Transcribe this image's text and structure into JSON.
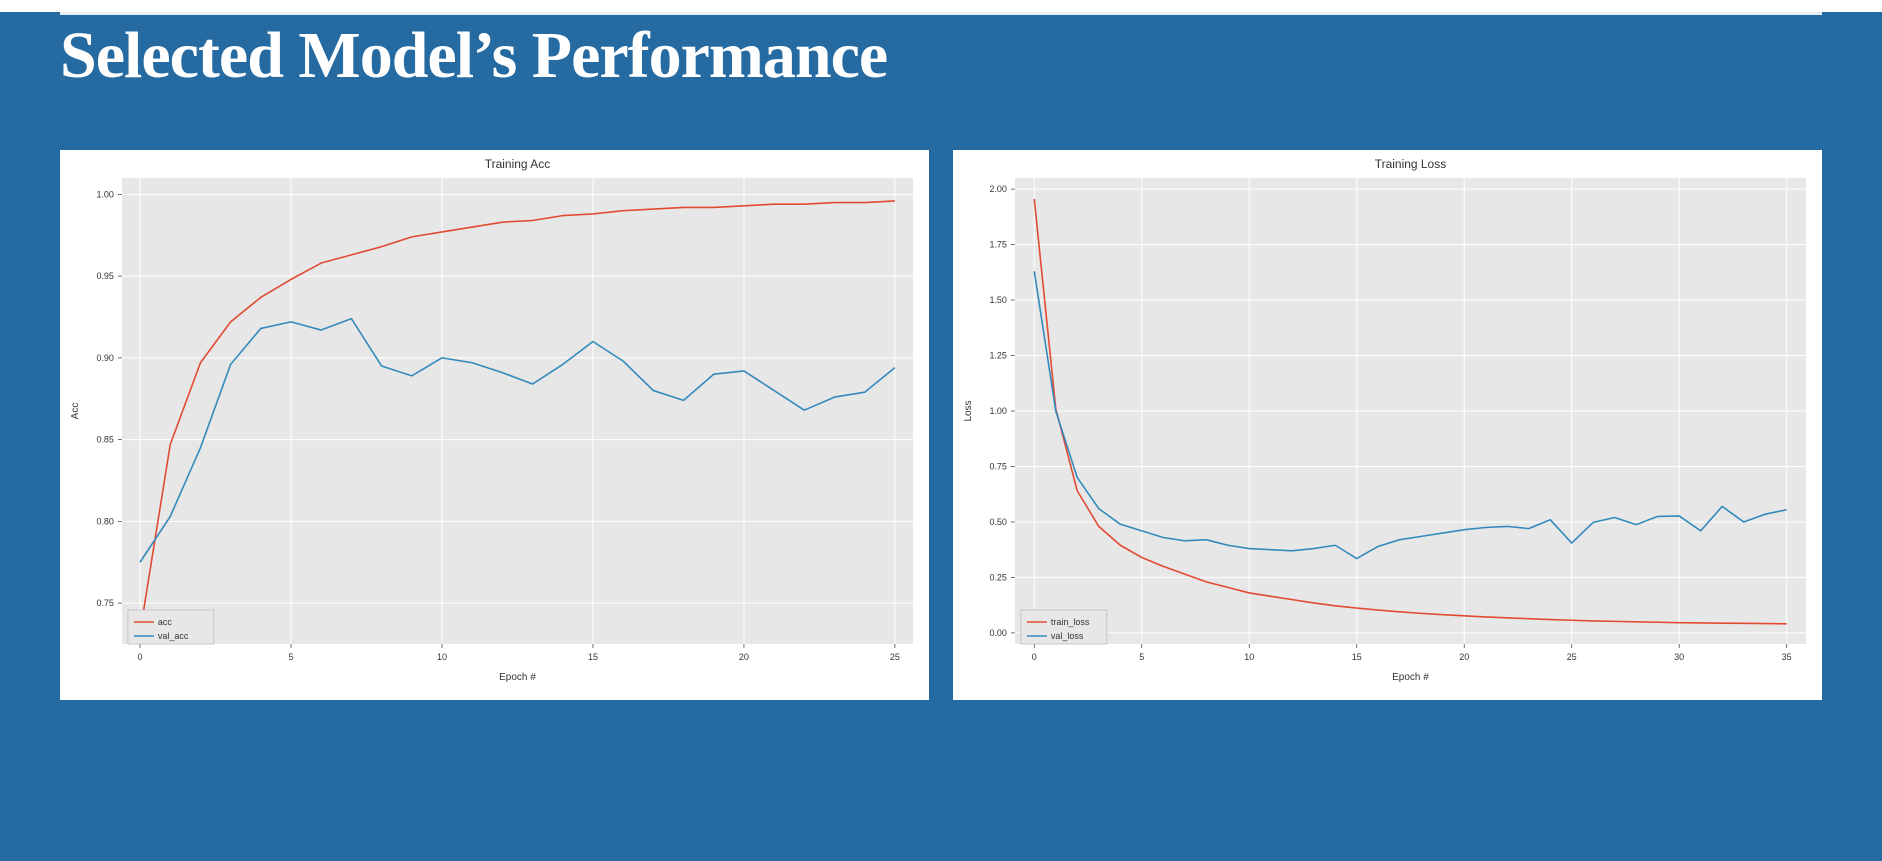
{
  "slide": {
    "background_color": "#256ba2",
    "rule_color": "#e6eef5",
    "title": "Selected Model’s Performance",
    "title_color": "#ffffff",
    "title_fontsize": 66,
    "title_font_family": "Georgia, 'Times New Roman', serif"
  },
  "charts": [
    {
      "id": "acc",
      "title": "Training Acc",
      "xlabel": "Epoch #",
      "ylabel": "Acc",
      "background_color": "#ffffff",
      "plot_bgcolor": "#e7e7e7",
      "grid_color": "#ffffff",
      "text_color": "#333333",
      "title_fontsize": 12,
      "label_fontsize": 10,
      "tick_fontsize": 9,
      "legend_fontsize": 9,
      "xlim": [
        -0.6,
        25.6
      ],
      "xticks": [
        0,
        5,
        10,
        15,
        20,
        25
      ],
      "ylim": [
        0.725,
        1.01
      ],
      "yticks": [
        0.75,
        0.8,
        0.85,
        0.9,
        0.95,
        1.0
      ],
      "legend_pos": "lower-left",
      "series": [
        {
          "name": "acc",
          "color": "#e24a33",
          "width": 1.6,
          "x": [
            0,
            1,
            2,
            3,
            4,
            5,
            6,
            7,
            8,
            9,
            10,
            11,
            12,
            13,
            14,
            15,
            16,
            17,
            18,
            19,
            20,
            21,
            22,
            23,
            24,
            25
          ],
          "y": [
            0.732,
            0.847,
            0.897,
            0.922,
            0.937,
            0.948,
            0.958,
            0.963,
            0.968,
            0.974,
            0.977,
            0.98,
            0.983,
            0.984,
            0.987,
            0.988,
            0.99,
            0.991,
            0.992,
            0.992,
            0.993,
            0.994,
            0.994,
            0.995,
            0.995,
            0.996
          ]
        },
        {
          "name": "val_acc",
          "color": "#348abd",
          "width": 1.6,
          "x": [
            0,
            1,
            2,
            3,
            4,
            5,
            6,
            7,
            8,
            9,
            10,
            11,
            12,
            13,
            14,
            15,
            16,
            17,
            18,
            19,
            20,
            21,
            22,
            23,
            24,
            25
          ],
          "y": [
            0.775,
            0.803,
            0.845,
            0.896,
            0.918,
            0.922,
            0.917,
            0.924,
            0.895,
            0.889,
            0.9,
            0.897,
            0.891,
            0.884,
            0.896,
            0.91,
            0.898,
            0.88,
            0.874,
            0.89,
            0.892,
            0.88,
            0.868,
            0.876,
            0.879,
            0.894
          ]
        }
      ]
    },
    {
      "id": "loss",
      "title": "Training Loss",
      "xlabel": "Epoch #",
      "ylabel": "Loss",
      "background_color": "#ffffff",
      "plot_bgcolor": "#e7e7e7",
      "grid_color": "#ffffff",
      "text_color": "#333333",
      "title_fontsize": 12,
      "label_fontsize": 10,
      "tick_fontsize": 9,
      "legend_fontsize": 9,
      "xlim": [
        -0.9,
        35.9
      ],
      "xticks": [
        0,
        5,
        10,
        15,
        20,
        25,
        30,
        35
      ],
      "ylim": [
        -0.05,
        2.05
      ],
      "yticks": [
        0.0,
        0.25,
        0.5,
        0.75,
        1.0,
        1.25,
        1.5,
        1.75,
        2.0
      ],
      "legend_pos": "lower-left",
      "series": [
        {
          "name": "train_loss",
          "color": "#e24a33",
          "width": 1.6,
          "x": [
            0,
            1,
            2,
            3,
            4,
            5,
            6,
            7,
            8,
            9,
            10,
            11,
            12,
            13,
            14,
            15,
            16,
            17,
            18,
            19,
            20,
            21,
            22,
            23,
            24,
            25,
            26,
            27,
            28,
            29,
            30,
            31,
            32,
            33,
            34,
            35
          ],
          "y": [
            1.955,
            1.01,
            0.64,
            0.48,
            0.395,
            0.34,
            0.3,
            0.265,
            0.23,
            0.205,
            0.18,
            0.165,
            0.15,
            0.135,
            0.122,
            0.112,
            0.103,
            0.095,
            0.088,
            0.082,
            0.077,
            0.072,
            0.068,
            0.064,
            0.06,
            0.057,
            0.054,
            0.052,
            0.05,
            0.048,
            0.046,
            0.045,
            0.044,
            0.043,
            0.042,
            0.041
          ]
        },
        {
          "name": "val_loss",
          "color": "#348abd",
          "width": 1.6,
          "x": [
            0,
            1,
            2,
            3,
            4,
            5,
            6,
            7,
            8,
            9,
            10,
            11,
            12,
            13,
            14,
            15,
            16,
            17,
            18,
            19,
            20,
            21,
            22,
            23,
            24,
            25,
            26,
            27,
            28,
            29,
            30,
            31,
            32,
            33,
            34,
            35
          ],
          "y": [
            1.63,
            1.0,
            0.7,
            0.56,
            0.49,
            0.46,
            0.43,
            0.415,
            0.42,
            0.395,
            0.38,
            0.375,
            0.37,
            0.38,
            0.395,
            0.335,
            0.39,
            0.42,
            0.435,
            0.45,
            0.465,
            0.475,
            0.48,
            0.47,
            0.51,
            0.405,
            0.498,
            0.52,
            0.488,
            0.525,
            0.527,
            0.46,
            0.57,
            0.5,
            0.535,
            0.555
          ]
        }
      ]
    }
  ]
}
